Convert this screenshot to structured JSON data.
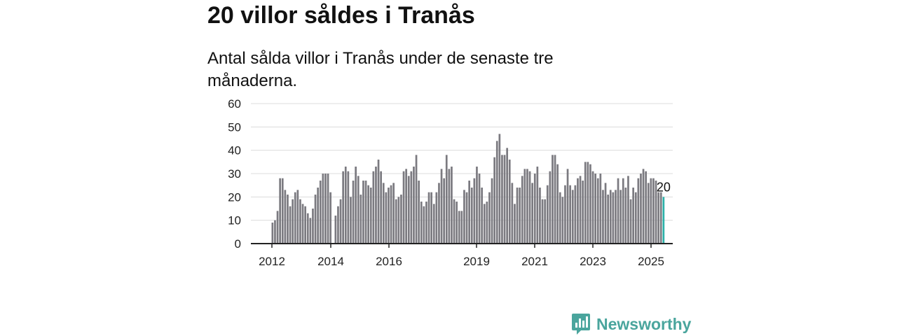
{
  "chart_data": {
    "type": "bar",
    "title": "20 villor såldes i Tranås",
    "subtitle": "Antal sålda villor i Tranås under de senaste tre månaderna.",
    "ylim": [
      0,
      60
    ],
    "yticks": [
      0,
      10,
      20,
      30,
      40,
      50,
      60
    ],
    "xticks": [
      "2012",
      "2014",
      "2016",
      "2019",
      "2021",
      "2023",
      "2025"
    ],
    "grid": true,
    "highlight_color": "#2ab0a8",
    "bar_color": "#7b7a80",
    "values": [
      9,
      10,
      14,
      28,
      28,
      23,
      21,
      16,
      19,
      22,
      23,
      19,
      17,
      16,
      13,
      11,
      15,
      21,
      24,
      27,
      30,
      30,
      30,
      22,
      null,
      12,
      16,
      19,
      31,
      33,
      31,
      20,
      27,
      33,
      29,
      21,
      27,
      27,
      25,
      24,
      31,
      33,
      36,
      31,
      26,
      22,
      24,
      25,
      26,
      19,
      20,
      21,
      31,
      32,
      29,
      31,
      33,
      38,
      27,
      18,
      16,
      18,
      22,
      22,
      17,
      22,
      26,
      32,
      28,
      38,
      32,
      33,
      19,
      18,
      14,
      14,
      23,
      22,
      27,
      24,
      28,
      33,
      30,
      24,
      17,
      18,
      22,
      28,
      37,
      44,
      47,
      38,
      38,
      41,
      36,
      26,
      17,
      24,
      24,
      29,
      32,
      32,
      31,
      26,
      30,
      33,
      24,
      19,
      19,
      25,
      31,
      38,
      38,
      34,
      22,
      20,
      25,
      32,
      25,
      23,
      25,
      28,
      29,
      27,
      35,
      35,
      34,
      31,
      30,
      28,
      30,
      23,
      26,
      21,
      23,
      22,
      23,
      28,
      23,
      28,
      24,
      29,
      19,
      24,
      22,
      28,
      30,
      32,
      31,
      26,
      28,
      28,
      27,
      22,
      22,
      20
    ],
    "last_value_label": "20"
  },
  "brand": {
    "name": "Newsworthy",
    "color": "#4aa59d"
  }
}
